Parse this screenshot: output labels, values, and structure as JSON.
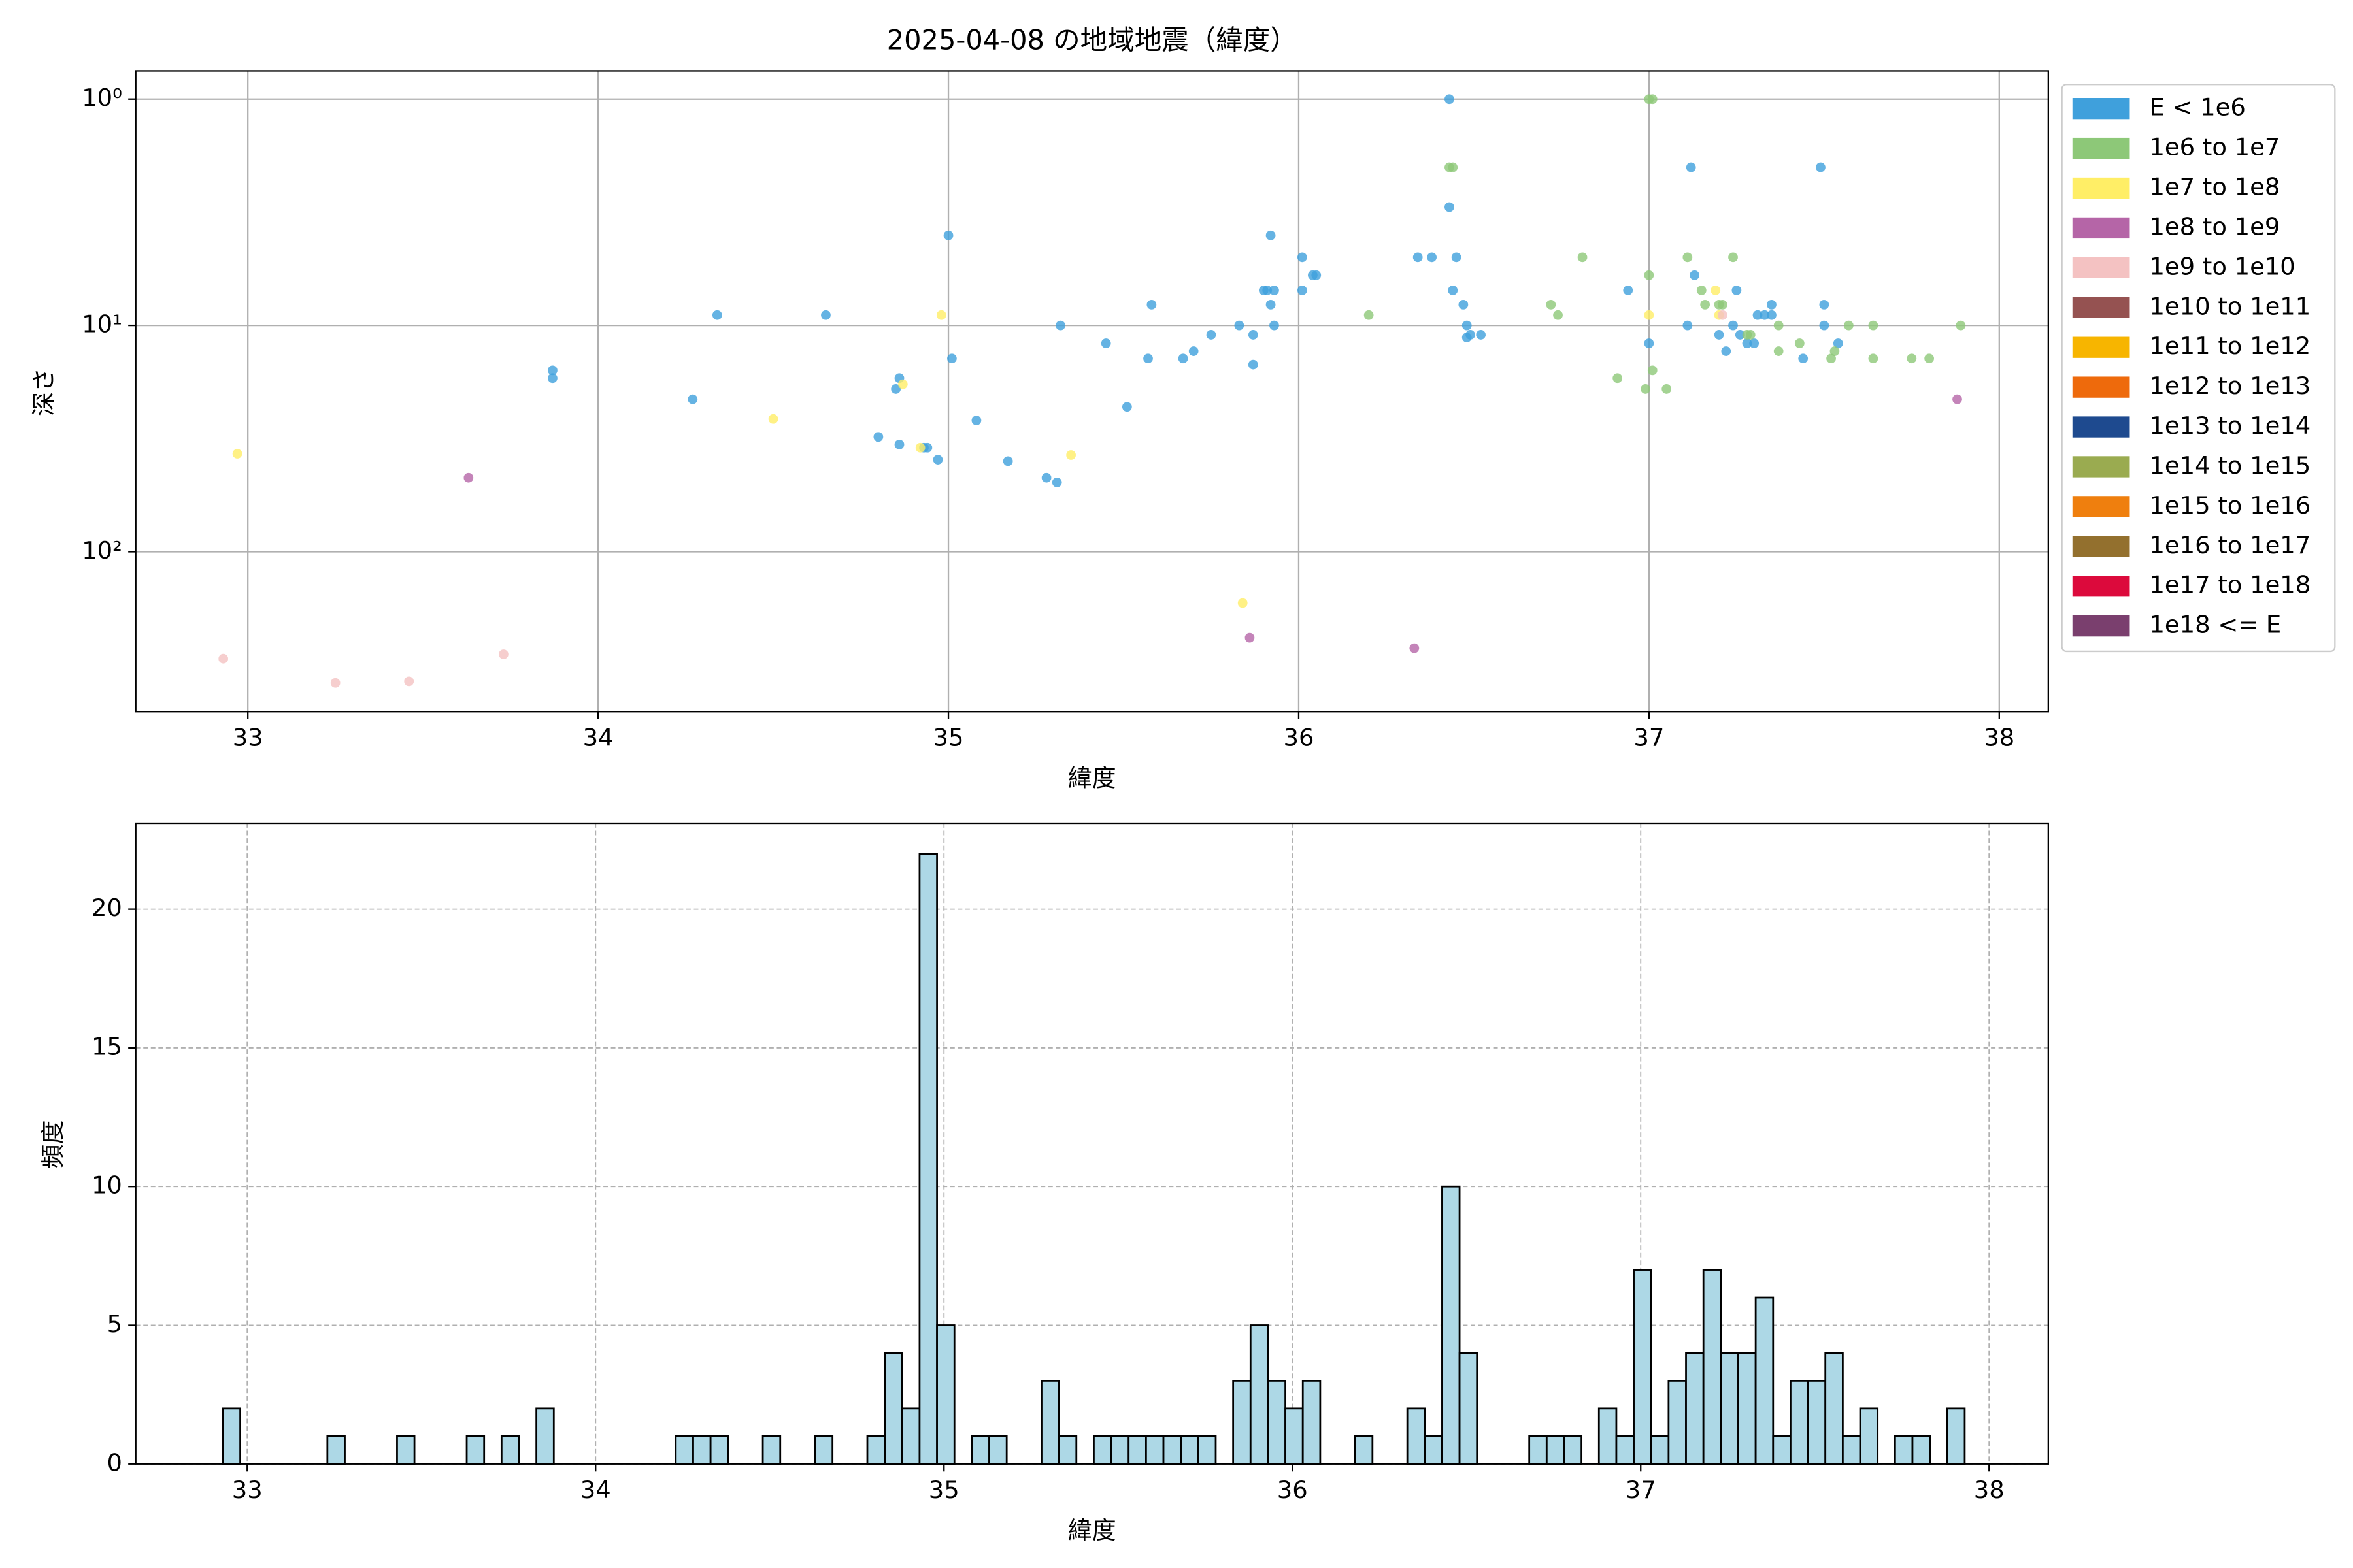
{
  "chart_data": [
    {
      "type": "scatter",
      "title": "2025-04-08 の地域地震（緯度）",
      "xlabel": "緯度",
      "ylabel": "深さ",
      "xlim": [
        32.68,
        38.14
      ],
      "ylim": [
        0.75,
        509
      ],
      "yscale": "log",
      "y_inverted": true,
      "xticks": [
        33,
        34,
        35,
        36,
        37,
        38
      ],
      "yticks": [
        {
          "value": 1,
          "label": "10⁰"
        },
        {
          "value": 10,
          "label": "10¹"
        },
        {
          "value": 100,
          "label": "10²"
        }
      ],
      "grid": true,
      "legend": "outside right",
      "series": [
        {
          "name": "E < 1e6",
          "color": "#3fa0dc",
          "x": [
            33.87,
            33.87,
            34.27,
            34.34,
            34.65,
            34.8,
            34.85,
            34.86,
            34.86,
            34.93,
            34.94,
            34.97,
            35.0,
            35.01,
            35.08,
            35.17,
            35.28,
            35.31,
            35.32,
            35.45,
            35.51,
            35.57,
            35.58,
            35.67,
            35.7,
            35.75,
            35.83,
            35.87,
            35.87,
            35.9,
            35.91,
            35.92,
            35.92,
            35.93,
            35.93,
            36.01,
            36.01,
            36.04,
            36.05,
            36.34,
            36.38,
            36.43,
            36.43,
            36.44,
            36.45,
            36.47,
            36.48,
            36.48,
            36.49,
            36.52,
            36.94,
            37.0,
            37.12,
            37.13,
            37.11,
            37.2,
            37.22,
            37.24,
            37.26,
            37.28,
            37.3,
            37.31,
            37.33,
            37.35,
            37.35,
            37.44,
            37.49,
            37.5,
            37.5,
            37.54,
            37.25
          ],
          "y": [
            15.8,
            17.1,
            21.2,
            9.0,
            9.0,
            31.1,
            19.1,
            17.1,
            33.6,
            34.7,
            34.7,
            39.2,
            4.0,
            14.0,
            26.3,
            39.8,
            47.1,
            49.4,
            10,
            12,
            22.9,
            14,
            8.1,
            14,
            13,
            11,
            10,
            11,
            14.9,
            7.0,
            7.0,
            4.0,
            8.1,
            10,
            7.0,
            5.0,
            7.0,
            6.0,
            6.0,
            5.0,
            5.0,
            1.0,
            3.0,
            7.0,
            5.0,
            8.1,
            11.3,
            10,
            11,
            11,
            7.0,
            12,
            2.0,
            6.0,
            10,
            11,
            13,
            10,
            11,
            12,
            12,
            9.0,
            9.0,
            8.1,
            9.0,
            14,
            2.0,
            8.1,
            10,
            12,
            7.0
          ]
        },
        {
          "name": "1e6 to 1e7",
          "color": "#8dc878",
          "x": [
            36.43,
            36.44,
            36.81,
            37.0,
            37.01,
            37.0,
            36.72,
            36.74,
            36.91,
            36.99,
            37.01,
            37.05,
            37.11,
            37.15,
            37.16,
            37.2,
            37.21,
            37.24,
            37.29,
            37.37,
            37.37,
            37.43,
            37.52,
            37.53,
            37.57,
            37.64,
            37.64,
            37.75,
            37.8,
            37.89,
            36.2,
            37.28
          ],
          "y": [
            2.0,
            2.0,
            5.0,
            1.0,
            1.0,
            6.0,
            8.1,
            9.0,
            17.1,
            19.1,
            15.8,
            19.1,
            5.0,
            7.0,
            8.1,
            8.1,
            8.1,
            5.0,
            11,
            10,
            13,
            12,
            14,
            13,
            10,
            14,
            10,
            14,
            14,
            10,
            9.0,
            11
          ]
        },
        {
          "name": "1e7 to 1e8",
          "color": "#ffee66",
          "x": [
            32.97,
            34.5,
            34.87,
            34.98,
            35.35,
            35.84,
            37.0,
            37.19,
            37.2,
            34.92
          ],
          "y": [
            36.9,
            25.9,
            18.2,
            9.0,
            37.4,
            168.6,
            9.0,
            7.0,
            9.0,
            34.7
          ]
        },
        {
          "name": "1e8 to 1e9",
          "color": "#b565a7",
          "x": [
            33.63,
            35.86,
            36.33,
            37.88
          ],
          "y": [
            47.1,
            240,
            267,
            21.2
          ]
        },
        {
          "name": "1e9 to 1e10",
          "color": "#f4c2c2",
          "x": [
            32.93,
            33.25,
            33.46,
            33.73,
            37.21
          ],
          "y": [
            297,
            380,
            374,
            284,
            9.0
          ]
        },
        {
          "name": "1e10 to 1e11",
          "color": "#955251",
          "x": [],
          "y": []
        },
        {
          "name": "1e11 to 1e12",
          "color": "#f7b500",
          "x": [],
          "y": []
        },
        {
          "name": "1e12 to 1e13",
          "color": "#ee6a0c",
          "x": [],
          "y": []
        },
        {
          "name": "1e13 to 1e14",
          "color": "#1e4a8f",
          "x": [],
          "y": []
        },
        {
          "name": "1e14 to 1e15",
          "color": "#9aab50",
          "x": [],
          "y": []
        },
        {
          "name": "1e15 to 1e16",
          "color": "#ef7f0e",
          "x": [],
          "y": []
        },
        {
          "name": "1e16 to 1e17",
          "color": "#93702e",
          "x": [],
          "y": []
        },
        {
          "name": "1e17 to 1e18",
          "color": "#dc0a3c",
          "x": [],
          "y": []
        },
        {
          "name": "1e18 <= E",
          "color": "#7a3f6e",
          "x": [],
          "y": []
        }
      ]
    },
    {
      "type": "histogram",
      "xlabel": "緯度",
      "ylabel": "頻度",
      "xlim": [
        32.68,
        38.17
      ],
      "ylim": [
        0,
        23.1
      ],
      "xticks": [
        33,
        34,
        35,
        36,
        37,
        38
      ],
      "yticks": [
        0,
        5,
        10,
        15,
        20
      ],
      "grid": true,
      "grid_style": "dashed",
      "color": "#add8e6",
      "edgecolor": "#000000",
      "bins": [
        32.93,
        32.98,
        33.03,
        33.08,
        33.13,
        33.18,
        33.23,
        33.28,
        33.33,
        33.38,
        33.43,
        33.48,
        33.53,
        33.58,
        33.63,
        33.68,
        33.73,
        33.78,
        33.83,
        33.88,
        33.93,
        33.98,
        34.03,
        34.08,
        34.13,
        34.18,
        34.23,
        34.28,
        34.33,
        34.38,
        34.43,
        34.48,
        34.53,
        34.58,
        34.63,
        34.68,
        34.73,
        34.78,
        34.83,
        34.88,
        34.93,
        34.98,
        35.03,
        35.08,
        35.13,
        35.18,
        35.23,
        35.28,
        35.33,
        35.38,
        35.43,
        35.48,
        35.53,
        35.58,
        35.63,
        35.68,
        35.73,
        35.78,
        35.83,
        35.88,
        35.93,
        35.98,
        36.03,
        36.08,
        36.13,
        36.18,
        36.23,
        36.28,
        36.33,
        36.38,
        36.43,
        36.48,
        36.53,
        36.58,
        36.63,
        36.68,
        36.73,
        36.78,
        36.83,
        36.88,
        36.93,
        36.98,
        37.03,
        37.08,
        37.13,
        37.18,
        37.23,
        37.28,
        37.33,
        37.38,
        37.43,
        37.48,
        37.53,
        37.58,
        37.63,
        37.68,
        37.73,
        37.78,
        37.83,
        37.88,
        37.93
      ],
      "values": [
        2,
        0,
        0,
        0,
        0,
        0,
        1,
        0,
        0,
        0,
        1,
        0,
        0,
        0,
        1,
        0,
        1,
        0,
        2,
        0,
        0,
        0,
        0,
        0,
        0,
        0,
        1,
        1,
        1,
        0,
        0,
        1,
        0,
        0,
        1,
        0,
        0,
        1,
        4,
        2,
        22,
        5,
        0,
        1,
        1,
        0,
        0,
        3,
        1,
        0,
        1,
        1,
        1,
        1,
        1,
        1,
        1,
        0,
        3,
        5,
        3,
        2,
        3,
        0,
        0,
        1,
        0,
        0,
        2,
        1,
        10,
        4,
        0,
        0,
        0,
        1,
        1,
        1,
        0,
        2,
        1,
        7,
        1,
        3,
        4,
        7,
        4,
        4,
        6,
        1,
        3,
        3,
        4,
        1,
        2,
        0,
        1,
        1,
        0,
        2
      ]
    }
  ]
}
